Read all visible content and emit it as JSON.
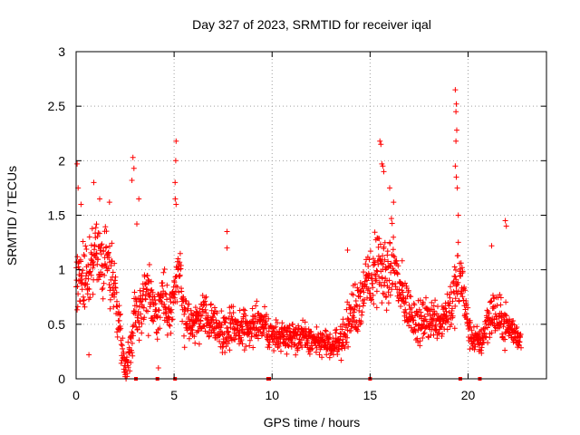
{
  "chart_data": {
    "type": "scatter",
    "title": "Day 327 of 2023, SRMTID for receiver iqal",
    "xlabel": "GPS time / hours",
    "ylabel": "SRMTID / TECUs",
    "xlim": [
      0,
      24
    ],
    "ylim": [
      0,
      3
    ],
    "grid": true,
    "marker": "+",
    "color": "#ff0000",
    "x_ticks": [
      0,
      5,
      10,
      15,
      20
    ],
    "x_tick_labels": [
      "0",
      "5",
      "10",
      "15",
      "20"
    ],
    "y_ticks": [
      0,
      0.5,
      1,
      1.5,
      2,
      2.5,
      3
    ],
    "y_tick_labels": [
      "0",
      "0.5",
      "1",
      "1.5",
      "2",
      "2.5",
      "3"
    ],
    "envelope": {
      "hours": [
        0,
        0.2,
        0.5,
        0.8,
        1.0,
        1.3,
        1.6,
        1.9,
        2.1,
        2.3,
        2.45,
        2.6,
        2.8,
        3.0,
        3.2,
        3.5,
        3.8,
        4.1,
        4.4,
        4.7,
        5.0,
        5.2,
        5.5,
        5.8,
        6.2,
        6.6,
        7.0,
        7.5,
        8.0,
        8.5,
        9.0,
        9.5,
        10.0,
        10.5,
        11.0,
        11.5,
        12.0,
        12.5,
        13.0,
        13.5,
        13.8,
        14.1,
        14.4,
        14.7,
        15.0,
        15.3,
        15.6,
        15.9,
        16.2,
        16.5,
        16.8,
        17.1,
        17.5,
        17.9,
        18.3,
        18.7,
        19.0,
        19.3,
        19.5,
        19.7,
        19.9,
        20.1,
        20.4,
        20.7,
        21.0,
        21.3,
        21.6,
        21.9,
        22.2,
        22.5,
        22.7
      ],
      "mean": [
        1.0,
        0.95,
        0.9,
        1.1,
        1.15,
        1.05,
        1.1,
        0.9,
        0.65,
        0.35,
        0.15,
        0.12,
        0.3,
        0.65,
        0.6,
        0.8,
        0.75,
        0.55,
        0.8,
        0.6,
        0.75,
        1.05,
        0.6,
        0.5,
        0.5,
        0.6,
        0.5,
        0.45,
        0.45,
        0.45,
        0.5,
        0.5,
        0.4,
        0.4,
        0.4,
        0.38,
        0.35,
        0.33,
        0.3,
        0.35,
        0.45,
        0.6,
        0.7,
        0.8,
        0.9,
        1.0,
        1.0,
        0.95,
        1.1,
        0.8,
        0.7,
        0.6,
        0.5,
        0.55,
        0.55,
        0.55,
        0.65,
        0.75,
        0.9,
        0.9,
        0.6,
        0.4,
        0.35,
        0.35,
        0.55,
        0.6,
        0.55,
        0.5,
        0.45,
        0.4,
        0.35
      ],
      "spread": [
        0.35,
        0.3,
        0.35,
        0.35,
        0.35,
        0.3,
        0.3,
        0.35,
        0.25,
        0.2,
        0.1,
        0.1,
        0.2,
        0.25,
        0.25,
        0.3,
        0.3,
        0.25,
        0.3,
        0.25,
        0.3,
        0.3,
        0.25,
        0.2,
        0.2,
        0.22,
        0.2,
        0.2,
        0.18,
        0.2,
        0.2,
        0.18,
        0.15,
        0.15,
        0.15,
        0.15,
        0.13,
        0.13,
        0.12,
        0.15,
        0.2,
        0.25,
        0.3,
        0.3,
        0.35,
        0.35,
        0.4,
        0.35,
        0.35,
        0.3,
        0.25,
        0.2,
        0.2,
        0.2,
        0.2,
        0.2,
        0.25,
        0.3,
        0.35,
        0.3,
        0.2,
        0.15,
        0.12,
        0.15,
        0.2,
        0.25,
        0.2,
        0.2,
        0.15,
        0.12,
        0.1
      ]
    },
    "extreme_points": [
      {
        "x": 0.05,
        "y": 1.97
      },
      {
        "x": 0.1,
        "y": 1.75
      },
      {
        "x": 0.25,
        "y": 1.6
      },
      {
        "x": 0.9,
        "y": 1.8
      },
      {
        "x": 1.2,
        "y": 1.65
      },
      {
        "x": 1.7,
        "y": 1.62
      },
      {
        "x": 2.9,
        "y": 2.03
      },
      {
        "x": 2.95,
        "y": 1.93
      },
      {
        "x": 2.85,
        "y": 1.82
      },
      {
        "x": 3.2,
        "y": 1.65
      },
      {
        "x": 3.1,
        "y": 1.42
      },
      {
        "x": 5.1,
        "y": 2.18
      },
      {
        "x": 5.08,
        "y": 2.0
      },
      {
        "x": 5.05,
        "y": 1.8
      },
      {
        "x": 5.06,
        "y": 1.65
      },
      {
        "x": 5.1,
        "y": 1.6
      },
      {
        "x": 7.7,
        "y": 1.35
      },
      {
        "x": 7.7,
        "y": 1.2
      },
      {
        "x": 13.85,
        "y": 1.18
      },
      {
        "x": 15.5,
        "y": 2.18
      },
      {
        "x": 15.55,
        "y": 2.15
      },
      {
        "x": 15.6,
        "y": 1.97
      },
      {
        "x": 15.7,
        "y": 1.9
      },
      {
        "x": 15.65,
        "y": 1.95
      },
      {
        "x": 16.0,
        "y": 1.75
      },
      {
        "x": 16.2,
        "y": 1.62
      },
      {
        "x": 19.35,
        "y": 2.65
      },
      {
        "x": 19.4,
        "y": 2.52
      },
      {
        "x": 19.38,
        "y": 2.45
      },
      {
        "x": 19.42,
        "y": 2.28
      },
      {
        "x": 19.38,
        "y": 2.18
      },
      {
        "x": 19.35,
        "y": 1.95
      },
      {
        "x": 19.4,
        "y": 1.85
      },
      {
        "x": 19.45,
        "y": 1.75
      },
      {
        "x": 19.5,
        "y": 1.5
      },
      {
        "x": 21.9,
        "y": 1.45
      },
      {
        "x": 21.95,
        "y": 1.4
      },
      {
        "x": 21.2,
        "y": 1.22
      },
      {
        "x": 2.5,
        "y": 0.02
      },
      {
        "x": 2.55,
        "y": 0.0
      },
      {
        "x": 2.6,
        "y": 0.05
      },
      {
        "x": 4.2,
        "y": 0.1
      },
      {
        "x": 0.65,
        "y": 0.22
      }
    ],
    "markers_at_zero": [
      3.05,
      4.15,
      5.05,
      9.8,
      9.85,
      15.0,
      19.6,
      20.6
    ]
  }
}
